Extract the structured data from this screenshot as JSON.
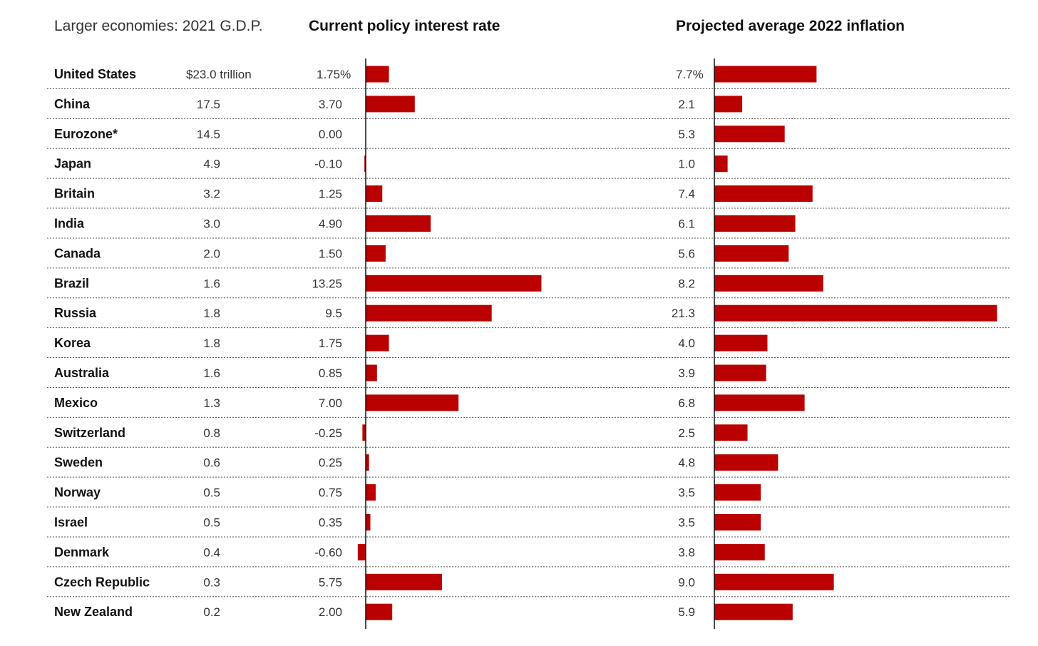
{
  "chart_data": {
    "type": "bar",
    "headers": {
      "gdp": "Larger economies: 2021 G.D.P.",
      "rate": "Current policy interest rate",
      "inflation": "Projected average 2022 inflation"
    },
    "countries": [
      "United States",
      "China",
      "Eurozone",
      "Japan",
      "Britain",
      "India",
      "Canada",
      "Brazil",
      "Russia",
      "Korea",
      "Australia",
      "Mexico",
      "Switzerland",
      "Sweden",
      "Norway",
      "Israel",
      "Denmark",
      "Czech Republic",
      "New Zealand"
    ],
    "country_labels": [
      "United States",
      "China",
      "Eurozone*",
      "Japan",
      "Britain",
      "India",
      "Canada",
      "Brazil",
      "Russia",
      "Korea",
      "Australia",
      "Mexico",
      "Switzerland",
      "Sweden",
      "Norway",
      "Israel",
      "Denmark",
      "Czech Republic",
      "New Zealand"
    ],
    "gdp_trillion": [
      23.0,
      17.5,
      14.5,
      4.9,
      3.2,
      3.0,
      2.0,
      1.6,
      1.8,
      1.8,
      1.6,
      1.3,
      0.8,
      0.6,
      0.5,
      0.5,
      0.4,
      0.3,
      0.2
    ],
    "gdp_labels": [
      "$23.0 trillion",
      "17.5",
      "14.5",
      "4.9",
      "3.2",
      "3.0",
      "2.0",
      "1.6",
      "1.8",
      "1.8",
      "1.6",
      "1.3",
      "0.8",
      "0.6",
      "0.5",
      "0.5",
      "0.4",
      "0.3",
      "0.2"
    ],
    "series": [
      {
        "key": "rate",
        "values": [
          1.75,
          3.7,
          0.0,
          -0.1,
          1.25,
          4.9,
          1.5,
          13.25,
          9.5,
          1.75,
          0.85,
          7.0,
          -0.25,
          0.25,
          0.75,
          0.35,
          -0.6,
          5.75,
          2.0
        ],
        "labels": [
          "1.75%",
          "3.70",
          "0.00",
          "-0.10",
          "1.25",
          "4.90",
          "1.50",
          "13.25",
          "9.5",
          "1.75",
          "0.85",
          "7.00",
          "-0.25",
          "0.25",
          "0.75",
          "0.35",
          "-0.60",
          "5.75",
          "2.00"
        ]
      },
      {
        "key": "inflation",
        "values": [
          7.7,
          2.1,
          5.3,
          1.0,
          7.4,
          6.1,
          5.6,
          8.2,
          21.3,
          4.0,
          3.9,
          6.8,
          2.5,
          4.8,
          3.5,
          3.5,
          3.8,
          9.0,
          5.9
        ],
        "labels": [
          "7.7%",
          "2.1",
          "5.3",
          "1.0",
          "7.4",
          "6.1",
          "5.6",
          "8.2",
          "21.3",
          "4.0",
          "3.9",
          "6.8",
          "2.5",
          "4.8",
          "3.5",
          "3.5",
          "3.8",
          "9.0",
          "5.9"
        ]
      }
    ],
    "colors": {
      "bar": "#bb0000",
      "text": "#121212"
    },
    "grid": "dotted row separators"
  }
}
